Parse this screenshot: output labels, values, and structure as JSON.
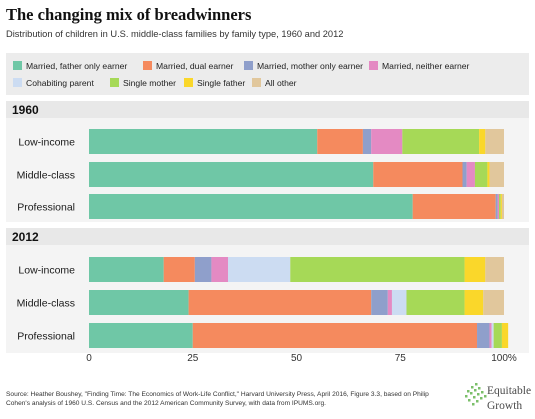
{
  "title": "The changing mix of breadwinners",
  "subtitle": "Distribution of children in U.S. middle-class families by family type, 1960 and 2012",
  "legend": [
    {
      "label": "Married, father only earner",
      "color": "#6fc7a6"
    },
    {
      "label": "Married, dual earner",
      "color": "#f58a5e"
    },
    {
      "label": "Married, mother only earner",
      "color": "#8f9fcb"
    },
    {
      "label": "Married, neither earner",
      "color": "#e48ac3"
    },
    {
      "label": "Cohabiting parent",
      "color": "#ccdcf2"
    },
    {
      "label": "Single mother",
      "color": "#a6d957"
    },
    {
      "label": "Single father",
      "color": "#fad72a"
    },
    {
      "label": "All other",
      "color": "#e1c79c"
    }
  ],
  "chart_data": {
    "type": "bar",
    "orientation": "horizontal",
    "stacked": true,
    "xlim": [
      0,
      100
    ],
    "x_ticks": [
      "0",
      "25",
      "50",
      "75",
      "100%"
    ],
    "grid": false,
    "legend_position": "top",
    "groups": [
      {
        "label": "1960",
        "categories": [
          "Low-income",
          "Middle-class",
          "Professional"
        ],
        "series": [
          {
            "name": "Married, father only earner",
            "values": [
              55,
              68.5,
              78
            ]
          },
          {
            "name": "Married, dual earner",
            "values": [
              11,
              21.5,
              20
            ]
          },
          {
            "name": "Married, mother only earner",
            "values": [
              2,
              1,
              0.5
            ]
          },
          {
            "name": "Married, neither earner",
            "values": [
              7.5,
              2,
              0.3
            ]
          },
          {
            "name": "Cohabiting parent",
            "values": [
              0,
              0,
              0
            ]
          },
          {
            "name": "Single mother",
            "values": [
              18.5,
              3,
              0.4
            ]
          },
          {
            "name": "Single father",
            "values": [
              1.5,
              0.5,
              0.3
            ]
          },
          {
            "name": "All other",
            "values": [
              4.5,
              3.5,
              0.5
            ]
          }
        ]
      },
      {
        "label": "2012",
        "categories": [
          "Low-income",
          "Middle-class",
          "Professional"
        ],
        "series": [
          {
            "name": "Married, father only earner",
            "values": [
              18,
              24,
              25
            ]
          },
          {
            "name": "Married, dual earner",
            "values": [
              7.5,
              44,
              68.5
            ]
          },
          {
            "name": "Married, mother only earner",
            "values": [
              4,
              4,
              3
            ]
          },
          {
            "name": "Married, neither earner",
            "values": [
              4,
              1,
              0.5
            ]
          },
          {
            "name": "Cohabiting parent",
            "values": [
              15,
              3.5,
              0.5
            ]
          },
          {
            "name": "Single mother",
            "values": [
              42,
              14,
              2
            ]
          },
          {
            "name": "Single father",
            "values": [
              5,
              4.5,
              1.5
            ]
          },
          {
            "name": "All other",
            "values": [
              4.5,
              5,
              0
            ]
          }
        ]
      }
    ]
  },
  "source": "Source: Heather Boushey, \"Finding Time: The Economics of Work-Life Conflict,\" Harvard University Press, April 2016, Figure 3.3, based on Philip Cohen's analysis of 1960 U.S. Census and the 2012 American Community Survey, with data from IPUMS.org.",
  "logo": {
    "line1": "Equitable",
    "line2": "Growth"
  }
}
